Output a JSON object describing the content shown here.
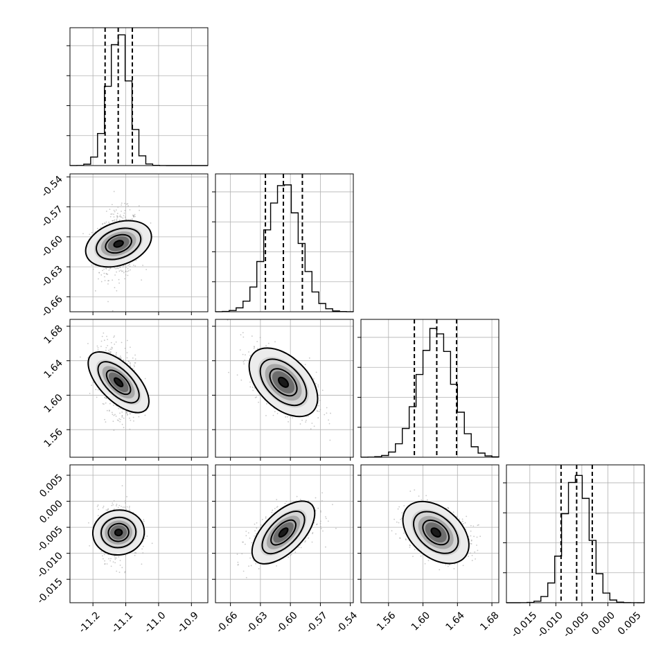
{
  "chart_data": {
    "type": "scatter",
    "plot_kind": "corner",
    "ndim": 4,
    "grid": true,
    "parameters": [
      {
        "range": [
          -11.27,
          -10.85
        ],
        "ticks": [
          "-11.2",
          "-11.1",
          "-11.0",
          "-10.9"
        ],
        "tick_values": [
          -11.2,
          -11.1,
          -11.0,
          -10.9
        ],
        "mean": -11.122,
        "std": 0.031,
        "quantiles": [
          -11.163,
          -11.123,
          -11.08
        ]
      },
      {
        "range": [
          -0.675,
          -0.537
        ],
        "ticks": [
          "-0.66",
          "-0.63",
          "-0.60",
          "-0.57",
          "-0.54"
        ],
        "tick_values": [
          -0.66,
          -0.63,
          -0.6,
          -0.57,
          -0.54
        ],
        "mean": -0.607,
        "std": 0.0165,
        "quantiles": [
          -0.625,
          -0.607,
          -0.588
        ]
      },
      {
        "range": [
          1.528,
          1.688
        ],
        "ticks": [
          "1.56",
          "1.60",
          "1.64",
          "1.68"
        ],
        "tick_values": [
          1.56,
          1.6,
          1.64,
          1.68
        ],
        "mean": 1.615,
        "std": 0.02,
        "quantiles": [
          1.59,
          1.616,
          1.639
        ]
      },
      {
        "range": [
          -0.0195,
          0.007
        ],
        "ticks": [
          "-0.015",
          "-0.010",
          "-0.005",
          "0.000",
          "0.005"
        ],
        "tick_values": [
          -0.015,
          -0.01,
          -0.005,
          0.0,
          0.005
        ],
        "mean": -0.006,
        "std": 0.0025,
        "quantiles": [
          -0.009,
          -0.006,
          -0.003
        ]
      }
    ],
    "correlations": [
      {
        "x": 0,
        "y": 1,
        "rho": 0.15
      },
      {
        "x": 0,
        "y": 2,
        "rho": -0.35
      },
      {
        "x": 1,
        "y": 2,
        "rho": -0.55
      },
      {
        "x": 0,
        "y": 3,
        "rho": 0.05
      },
      {
        "x": 1,
        "y": 3,
        "rho": 0.55
      },
      {
        "x": 2,
        "y": 3,
        "rho": -0.3
      }
    ]
  }
}
